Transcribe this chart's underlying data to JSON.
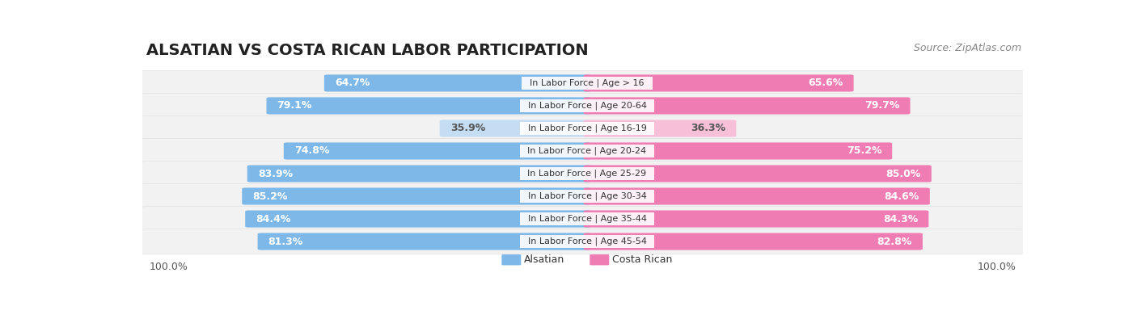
{
  "title": "ALSATIAN VS COSTA RICAN LABOR PARTICIPATION",
  "source": "Source: ZipAtlas.com",
  "categories": [
    "In Labor Force | Age > 16",
    "In Labor Force | Age 20-64",
    "In Labor Force | Age 16-19",
    "In Labor Force | Age 20-24",
    "In Labor Force | Age 25-29",
    "In Labor Force | Age 30-34",
    "In Labor Force | Age 35-44",
    "In Labor Force | Age 45-54"
  ],
  "alsatian_values": [
    64.7,
    79.1,
    35.9,
    74.8,
    83.9,
    85.2,
    84.4,
    81.3
  ],
  "costa_rican_values": [
    65.6,
    79.7,
    36.3,
    75.2,
    85.0,
    84.6,
    84.3,
    82.8
  ],
  "alsatian_color": "#7db8e8",
  "alsatian_light_color": "#c5ddf2",
  "costa_rican_color": "#f07cb4",
  "costa_rican_light_color": "#f7c0d8",
  "row_bg_color": "#f2f2f2",
  "row_border_color": "#e0e0e0",
  "max_value": 100.0,
  "legend_alsatian": "Alsatian",
  "legend_costa_rican": "Costa Rican",
  "title_fontsize": 14,
  "source_fontsize": 9,
  "bar_label_fontsize": 9,
  "category_fontsize": 8,
  "legend_fontsize": 9,
  "axis_label_fontsize": 9,
  "fig_bg": "#ffffff"
}
